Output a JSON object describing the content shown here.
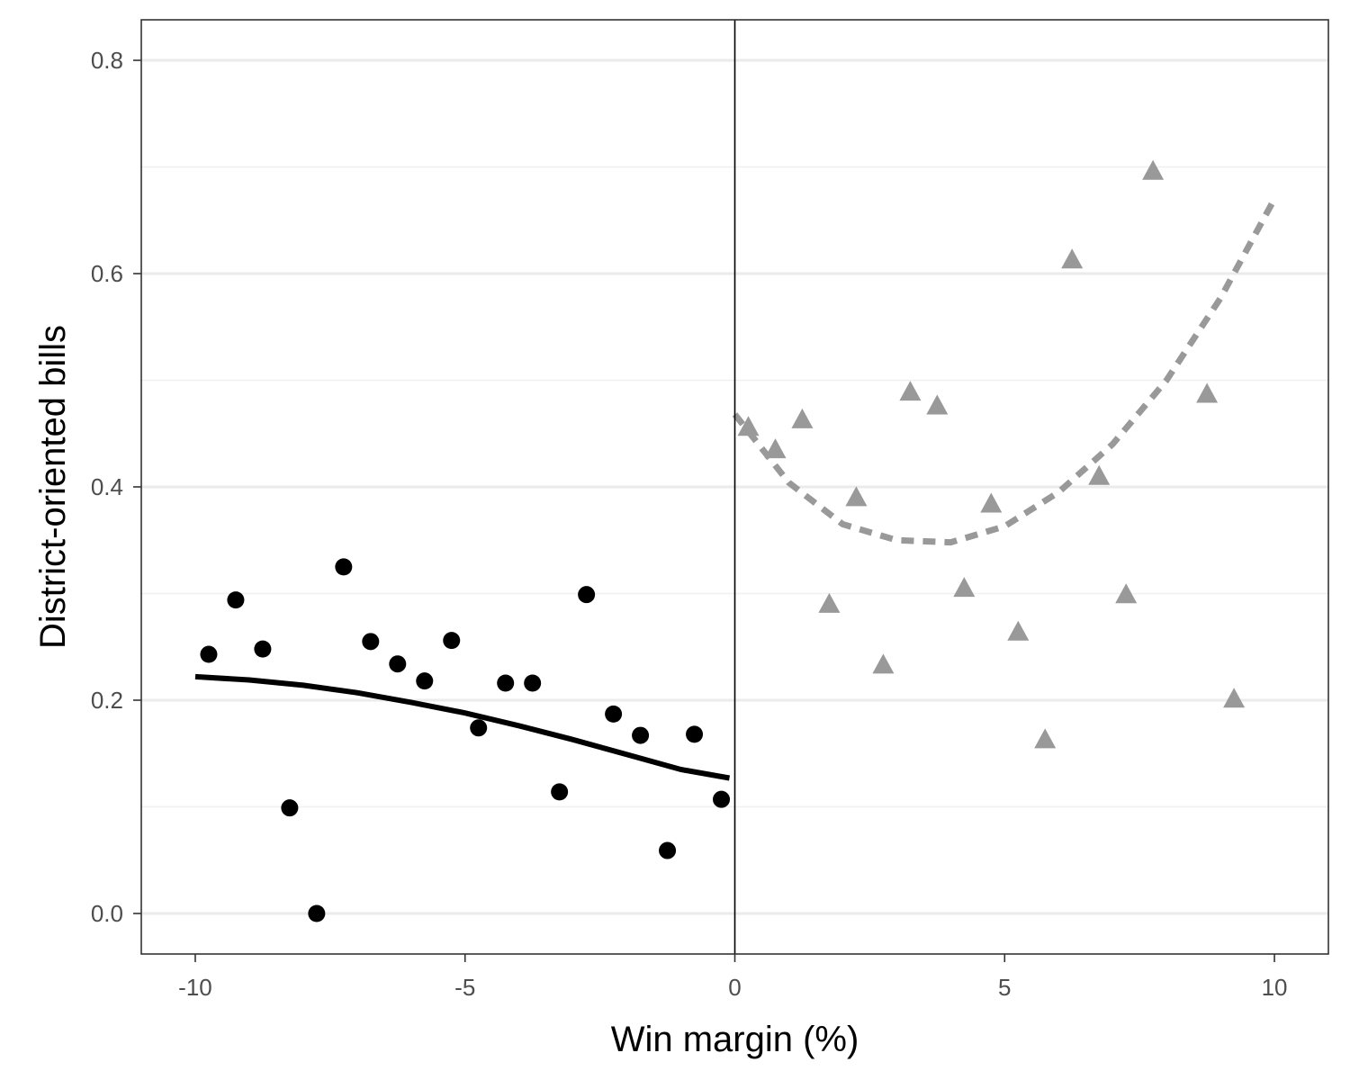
{
  "chart_data": {
    "type": "scatter",
    "xlabel": "Win margin (%)",
    "ylabel": "District-oriented bills",
    "xlim": [
      -11,
      11
    ],
    "ylim": [
      -0.038,
      0.838
    ],
    "x_ticks": [
      -10,
      -5,
      0,
      5,
      10
    ],
    "x_tick_labels": [
      "-10",
      "-5",
      "0",
      "5",
      "10"
    ],
    "y_ticks": [
      0.0,
      0.2,
      0.4,
      0.6,
      0.8
    ],
    "y_tick_labels": [
      "0.0",
      "0.2",
      "0.4",
      "0.6",
      "0.8"
    ],
    "y_minor_ticks": [
      0.1,
      0.3,
      0.5,
      0.7
    ],
    "grid": "horizontal",
    "cutoff_line_x": 0,
    "series": [
      {
        "marker": "circle",
        "color": "#000000",
        "points": [
          [
            -9.75,
            0.243
          ],
          [
            -9.25,
            0.294
          ],
          [
            -8.75,
            0.248
          ],
          [
            -8.25,
            0.099
          ],
          [
            -7.75,
            0.0
          ],
          [
            -7.25,
            0.325
          ],
          [
            -6.75,
            0.255
          ],
          [
            -6.25,
            0.234
          ],
          [
            -5.75,
            0.218
          ],
          [
            -5.25,
            0.256
          ],
          [
            -4.75,
            0.174
          ],
          [
            -4.25,
            0.216
          ],
          [
            -3.75,
            0.216
          ],
          [
            -3.25,
            0.114
          ],
          [
            -2.75,
            0.299
          ],
          [
            -2.25,
            0.187
          ],
          [
            -1.75,
            0.167
          ],
          [
            -1.25,
            0.059
          ],
          [
            -0.75,
            0.168
          ],
          [
            -0.25,
            0.107
          ]
        ]
      },
      {
        "marker": "triangle",
        "color": "#999999",
        "points": [
          [
            0.25,
            0.455
          ],
          [
            0.75,
            0.434
          ],
          [
            1.25,
            0.462
          ],
          [
            1.75,
            0.289
          ],
          [
            2.25,
            0.389
          ],
          [
            2.75,
            0.232
          ],
          [
            3.25,
            0.488
          ],
          [
            3.75,
            0.475
          ],
          [
            4.25,
            0.304
          ],
          [
            4.75,
            0.383
          ],
          [
            5.25,
            0.263
          ],
          [
            5.75,
            0.162
          ],
          [
            6.25,
            0.612
          ],
          [
            6.75,
            0.409
          ],
          [
            7.25,
            0.298
          ],
          [
            7.75,
            0.695
          ],
          [
            8.75,
            0.486
          ],
          [
            9.25,
            0.2
          ]
        ]
      }
    ],
    "fit_lines": [
      {
        "style": "solid",
        "color": "#000000",
        "x": [
          -10,
          -9,
          -8,
          -7,
          -6,
          -5,
          -4,
          -3,
          -2,
          -1,
          -0.1
        ],
        "y": [
          0.222,
          0.219,
          0.214,
          0.207,
          0.198,
          0.188,
          0.176,
          0.163,
          0.149,
          0.135,
          0.127
        ]
      },
      {
        "style": "dashed",
        "color": "#999999",
        "x": [
          0,
          1,
          2,
          3,
          4,
          5,
          6,
          7,
          8,
          9,
          10
        ],
        "y": [
          0.468,
          0.404,
          0.365,
          0.35,
          0.348,
          0.363,
          0.395,
          0.44,
          0.5,
          0.577,
          0.67
        ]
      }
    ]
  }
}
